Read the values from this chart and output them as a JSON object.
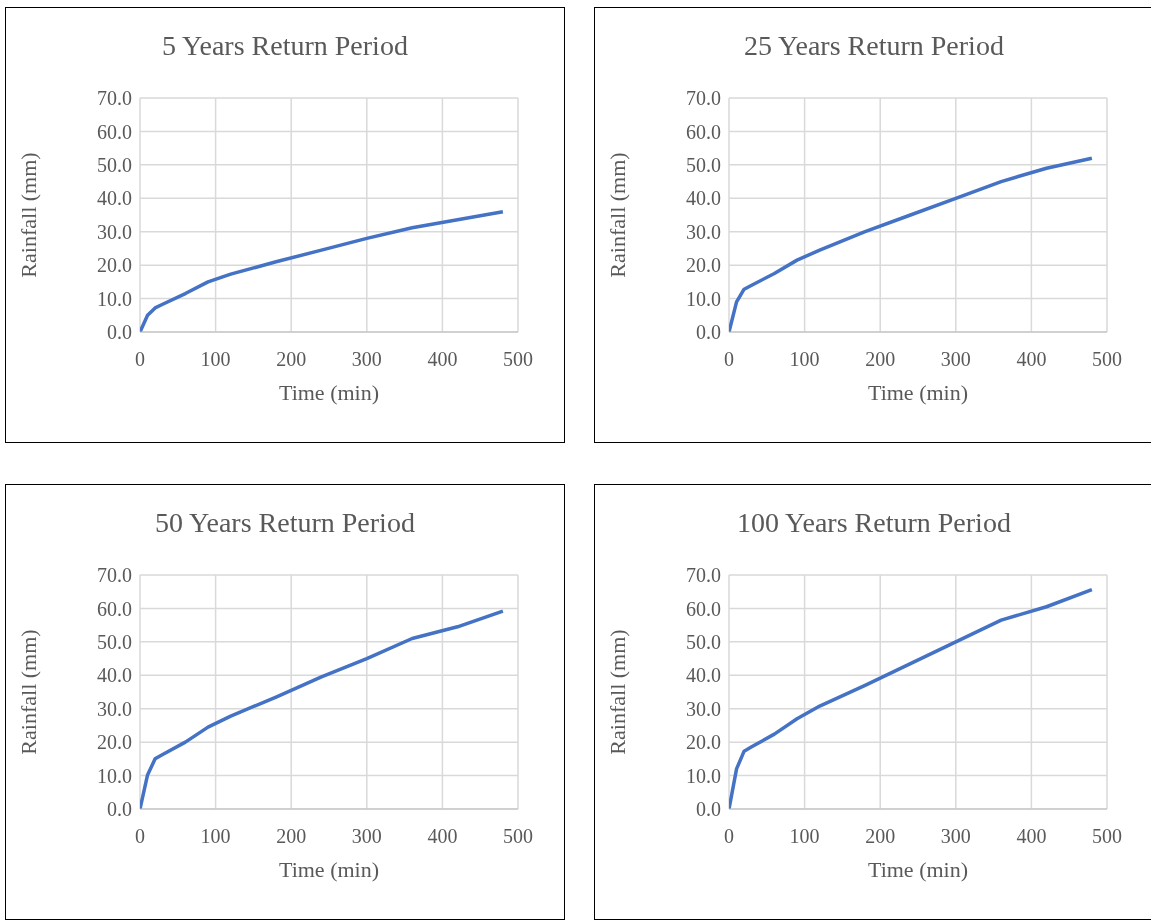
{
  "chart_data": [
    {
      "type": "line",
      "title": "5 Years Return Period",
      "xlabel": "Time (min)",
      "ylabel": "Rainfall (mm)",
      "x": [
        0,
        10,
        20,
        30,
        60,
        90,
        120,
        180,
        240,
        300,
        360,
        420,
        480
      ],
      "series": [
        {
          "color": "#4472c4",
          "values": [
            0,
            5,
            7.2,
            8.3,
            11.5,
            15,
            17.3,
            21,
            24.5,
            28,
            31.2,
            33.6,
            36
          ]
        }
      ],
      "xlim": [
        0,
        500
      ],
      "xticks": [
        0,
        100,
        200,
        300,
        400,
        500
      ],
      "ylim": [
        0,
        70
      ],
      "yticks": [
        {
          "value": 0,
          "label": "0.0"
        },
        {
          "value": 10,
          "label": "10.0"
        },
        {
          "value": 20,
          "label": "20.0"
        },
        {
          "value": 30,
          "label": "30.0"
        },
        {
          "value": 40,
          "label": "40.0"
        },
        {
          "value": 50,
          "label": "50.0"
        },
        {
          "value": 60,
          "label": "60.0"
        },
        {
          "value": 70,
          "label": "70.0"
        }
      ],
      "grid": true,
      "marker": "none",
      "line_style": "solid"
    },
    {
      "type": "line",
      "title": "25 Years Return Period",
      "xlabel": "Time (min)",
      "ylabel": "Rainfall (mm)",
      "x": [
        0,
        10,
        20,
        30,
        60,
        90,
        120,
        180,
        240,
        300,
        360,
        420,
        480
      ],
      "series": [
        {
          "color": "#4472c4",
          "values": [
            0,
            9,
            12.8,
            14,
            17.5,
            21.5,
            24.5,
            30,
            35,
            40,
            45,
            49,
            52
          ]
        }
      ],
      "xlim": [
        0,
        500
      ],
      "xticks": [
        0,
        100,
        200,
        300,
        400,
        500
      ],
      "ylim": [
        0,
        70
      ],
      "yticks": [
        {
          "value": 0,
          "label": "0.0"
        },
        {
          "value": 10,
          "label": "10.0"
        },
        {
          "value": 20,
          "label": "20.0"
        },
        {
          "value": 30,
          "label": "30.0"
        },
        {
          "value": 40,
          "label": "40.0"
        },
        {
          "value": 50,
          "label": "50.0"
        },
        {
          "value": 60,
          "label": "60.0"
        },
        {
          "value": 70,
          "label": "70.0"
        }
      ],
      "grid": true,
      "marker": "none",
      "line_style": "solid"
    },
    {
      "type": "line",
      "title": "50 Years Return Period",
      "xlabel": "Time (min)",
      "ylabel": "Rainfall (mm)",
      "x": [
        0,
        10,
        20,
        30,
        60,
        90,
        120,
        180,
        240,
        300,
        360,
        420,
        480
      ],
      "series": [
        {
          "color": "#4472c4",
          "values": [
            0,
            10.2,
            15,
            16.3,
            20,
            24.5,
            27.8,
            33.5,
            39.5,
            45,
            51,
            54.5,
            59.2
          ]
        }
      ],
      "xlim": [
        0,
        500
      ],
      "xticks": [
        0,
        100,
        200,
        300,
        400,
        500
      ],
      "ylim": [
        0,
        70
      ],
      "yticks": [
        {
          "value": 0,
          "label": "0.0"
        },
        {
          "value": 10,
          "label": "10.0"
        },
        {
          "value": 20,
          "label": "20.0"
        },
        {
          "value": 30,
          "label": "30.0"
        },
        {
          "value": 40,
          "label": "40.0"
        },
        {
          "value": 50,
          "label": "50.0"
        },
        {
          "value": 60,
          "label": "60.0"
        },
        {
          "value": 70,
          "label": "70.0"
        }
      ],
      "grid": true,
      "marker": "none",
      "line_style": "solid"
    },
    {
      "type": "line",
      "title": "100 Years Return Period",
      "xlabel": "Time (min)",
      "ylabel": "Rainfall (mm)",
      "x": [
        0,
        10,
        20,
        30,
        60,
        90,
        120,
        180,
        240,
        300,
        360,
        420,
        480
      ],
      "series": [
        {
          "color": "#4472c4",
          "values": [
            0,
            12,
            17.3,
            18.6,
            22.4,
            27,
            30.8,
            37,
            43.5,
            50,
            56.5,
            60.5,
            65.6
          ]
        }
      ],
      "xlim": [
        0,
        500
      ],
      "xticks": [
        0,
        100,
        200,
        300,
        400,
        500
      ],
      "ylim": [
        0,
        70
      ],
      "yticks": [
        {
          "value": 0,
          "label": "0.0"
        },
        {
          "value": 10,
          "label": "10.0"
        },
        {
          "value": 20,
          "label": "20.0"
        },
        {
          "value": 30,
          "label": "30.0"
        },
        {
          "value": 40,
          "label": "40.0"
        },
        {
          "value": 50,
          "label": "50.0"
        },
        {
          "value": 60,
          "label": "60.0"
        },
        {
          "value": 70,
          "label": "70.0"
        }
      ],
      "grid": true,
      "marker": "none",
      "line_style": "solid"
    }
  ]
}
